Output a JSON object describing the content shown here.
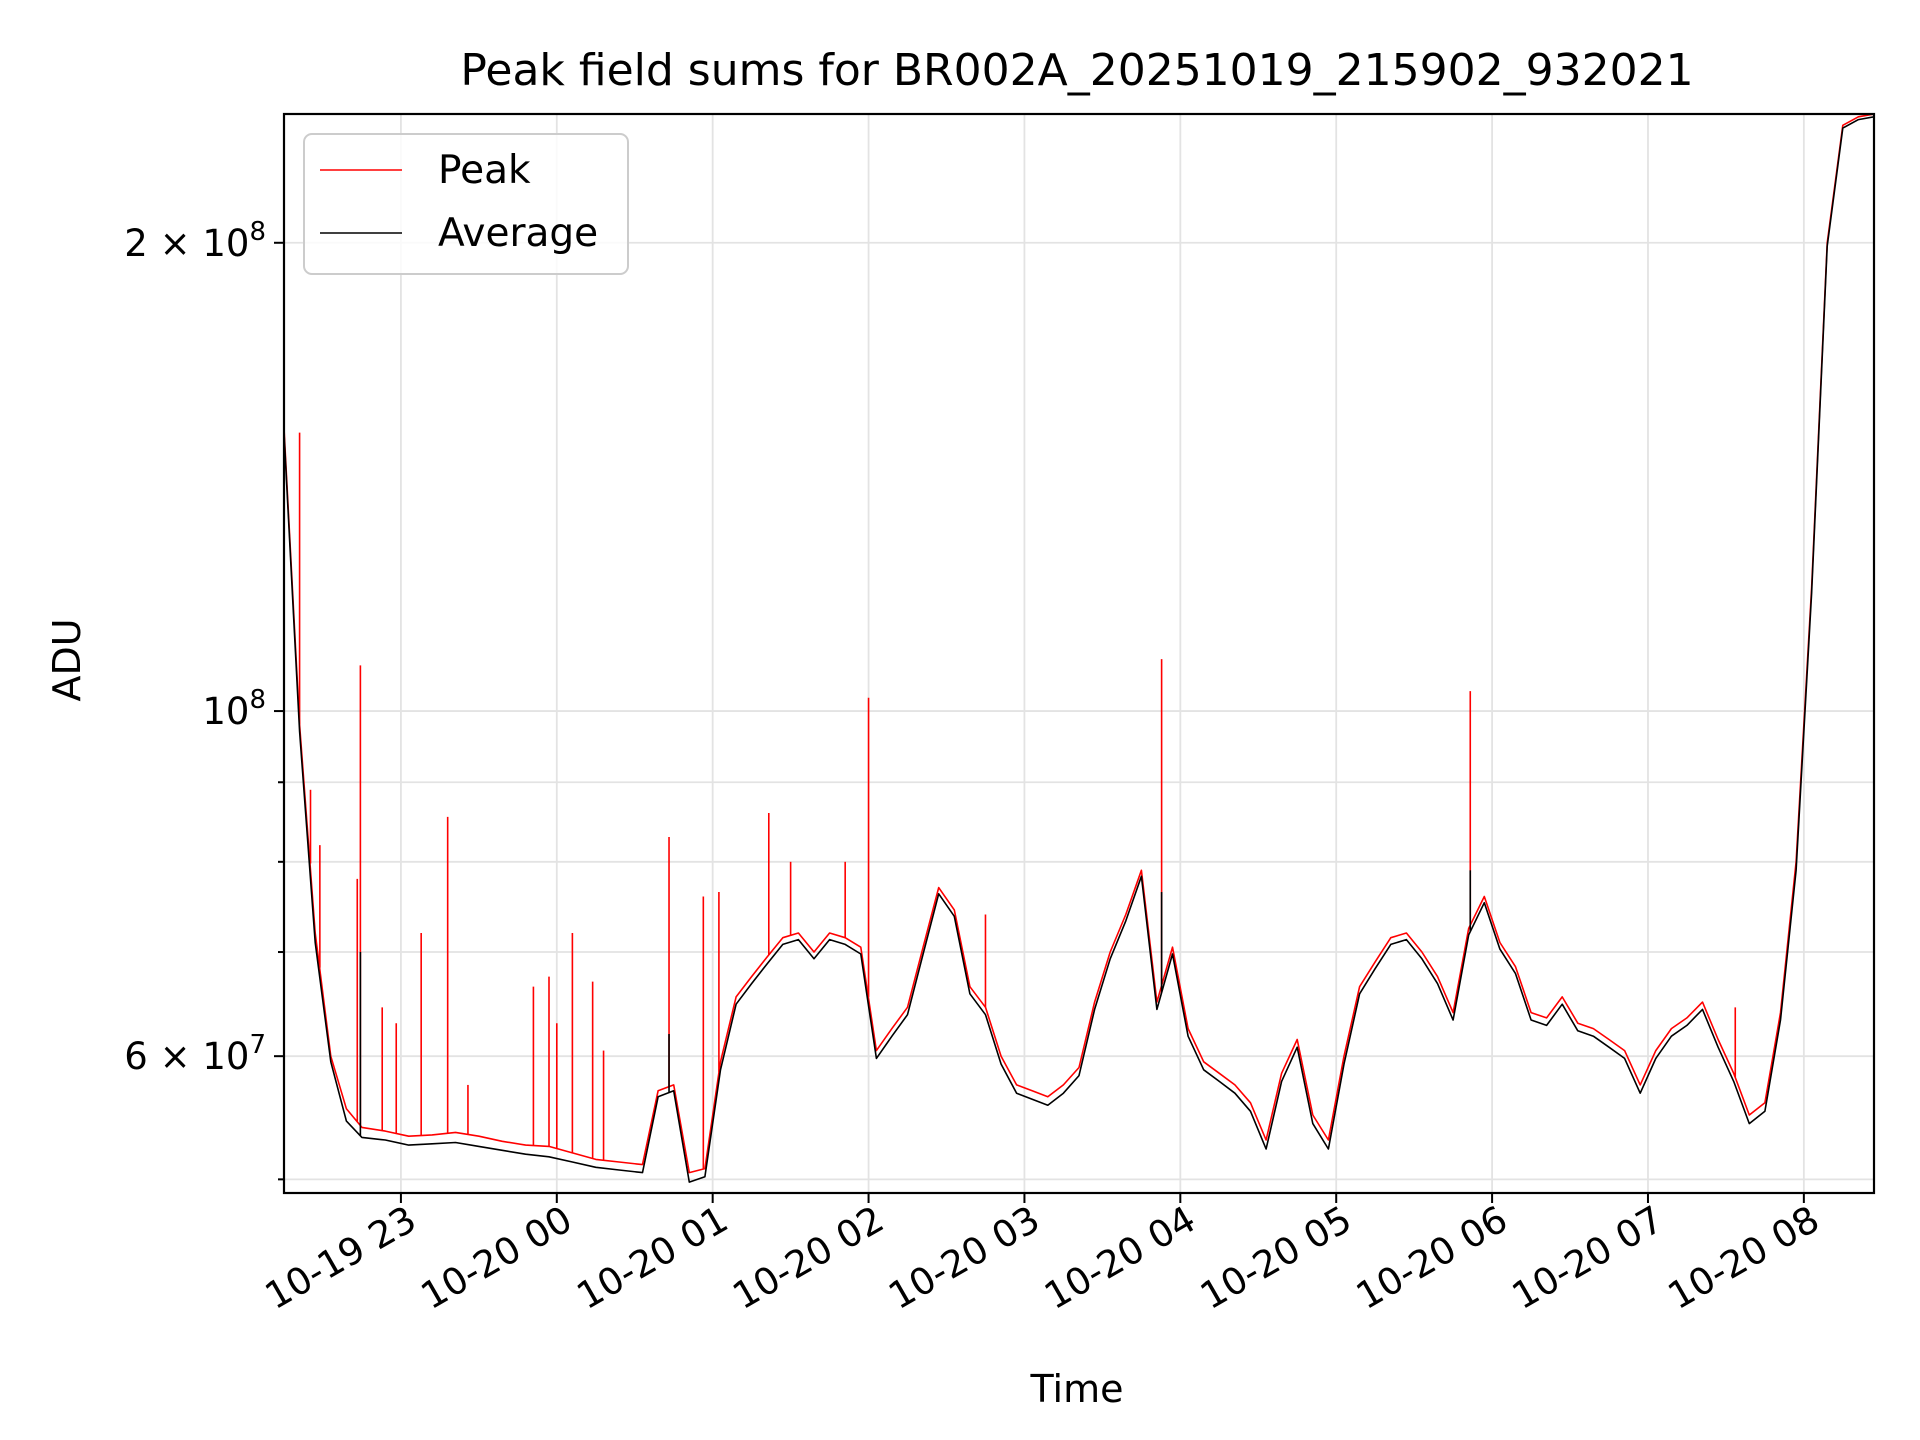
{
  "chart_data": {
    "type": "line",
    "title": "Peak field sums for BR002A_20251019_215902_932021",
    "xlabel": "Time",
    "ylabel": "ADU",
    "yscale": "log",
    "xlim": [
      22.25,
      32.45
    ],
    "ylim": [
      49000000,
      242000000
    ],
    "grid": true,
    "legend_position": "top-left",
    "x_ticks": [
      {
        "value": 23,
        "label": "10-19 23"
      },
      {
        "value": 24,
        "label": "10-20 00"
      },
      {
        "value": 25,
        "label": "10-20 01"
      },
      {
        "value": 26,
        "label": "10-20 02"
      },
      {
        "value": 27,
        "label": "10-20 03"
      },
      {
        "value": 28,
        "label": "10-20 04"
      },
      {
        "value": 29,
        "label": "10-20 05"
      },
      {
        "value": 30,
        "label": "10-20 06"
      },
      {
        "value": 31,
        "label": "10-20 07"
      },
      {
        "value": 32,
        "label": "10-20 08"
      }
    ],
    "y_ticks": [
      {
        "value": 60000000,
        "mantissa": "6",
        "exponent": "7"
      },
      {
        "value": 100000000,
        "mantissa": "",
        "exponent": "8"
      },
      {
        "value": 200000000,
        "mantissa": "2",
        "exponent": "8"
      }
    ],
    "y_minor_ticks": [
      50000000,
      70000000,
      80000000,
      90000000
    ],
    "series": [
      {
        "name": "Peak",
        "color": "#ff0000",
        "x": [
          22.25,
          22.35,
          22.45,
          22.55,
          22.65,
          22.75,
          22.9,
          23.05,
          23.2,
          23.35,
          23.5,
          23.65,
          23.8,
          23.95,
          24.1,
          24.25,
          24.4,
          24.55,
          24.65,
          24.75,
          24.85,
          24.95,
          25.05,
          25.15,
          25.25,
          25.35,
          25.45,
          25.55,
          25.65,
          25.75,
          25.85,
          25.95,
          26.05,
          26.15,
          26.25,
          26.35,
          26.45,
          26.55,
          26.65,
          26.75,
          26.85,
          26.95,
          27.05,
          27.15,
          27.25,
          27.35,
          27.45,
          27.55,
          27.65,
          27.75,
          27.85,
          27.95,
          28.05,
          28.15,
          28.25,
          28.35,
          28.45,
          28.55,
          28.65,
          28.75,
          28.85,
          28.95,
          29.05,
          29.15,
          29.25,
          29.35,
          29.45,
          29.55,
          29.65,
          29.75,
          29.85,
          29.95,
          30.05,
          30.15,
          30.25,
          30.35,
          30.45,
          30.55,
          30.65,
          30.75,
          30.85,
          30.95,
          31.05,
          31.15,
          31.25,
          31.35,
          31.45,
          31.55,
          31.65,
          31.75,
          31.85,
          31.95,
          32.05,
          32.15,
          32.25,
          32.35,
          32.45
        ],
        "values": [
          152000000,
          98000000,
          72000000,
          60000000,
          55500000,
          54000000,
          53700000,
          53300000,
          53400000,
          53600000,
          53300000,
          52900000,
          52600000,
          52500000,
          52000000,
          51500000,
          51300000,
          51100000,
          57000000,
          57500000,
          50500000,
          50800000,
          59500000,
          65500000,
          67500000,
          69500000,
          71500000,
          72000000,
          70000000,
          72000000,
          71500000,
          70500000,
          60500000,
          62500000,
          64500000,
          70500000,
          77000000,
          74500000,
          66500000,
          64500000,
          60000000,
          57500000,
          57000000,
          56500000,
          57500000,
          59000000,
          65000000,
          70000000,
          74000000,
          79000000,
          65000000,
          70500000,
          62500000,
          59500000,
          58500000,
          57500000,
          56000000,
          53000000,
          58500000,
          61500000,
          55000000,
          53000000,
          60000000,
          66500000,
          69000000,
          71500000,
          72000000,
          70000000,
          67500000,
          64000000,
          72500000,
          76000000,
          71000000,
          68500000,
          64000000,
          63500000,
          65500000,
          63000000,
          62500000,
          61500000,
          60500000,
          57500000,
          60500000,
          62500000,
          63500000,
          65000000,
          61500000,
          58500000,
          55000000,
          56000000,
          64000000,
          80000000,
          120000000,
          200000000,
          238000000,
          241000000,
          242000000
        ],
        "spikes": [
          {
            "x": 22.35,
            "value": 151000000
          },
          {
            "x": 22.42,
            "value": 89000000
          },
          {
            "x": 22.48,
            "value": 82000000
          },
          {
            "x": 22.72,
            "value": 78000000
          },
          {
            "x": 22.74,
            "value": 107000000
          },
          {
            "x": 22.88,
            "value": 64500000
          },
          {
            "x": 22.97,
            "value": 63000000
          },
          {
            "x": 23.13,
            "value": 72000000
          },
          {
            "x": 23.3,
            "value": 85500000
          },
          {
            "x": 23.43,
            "value": 57500000
          },
          {
            "x": 23.85,
            "value": 66500000
          },
          {
            "x": 23.95,
            "value": 67500000
          },
          {
            "x": 24.0,
            "value": 63000000
          },
          {
            "x": 24.1,
            "value": 72000000
          },
          {
            "x": 24.23,
            "value": 67000000
          },
          {
            "x": 24.3,
            "value": 60500000
          },
          {
            "x": 24.72,
            "value": 83000000
          },
          {
            "x": 24.94,
            "value": 76000000
          },
          {
            "x": 25.04,
            "value": 76500000
          },
          {
            "x": 25.36,
            "value": 86000000
          },
          {
            "x": 25.5,
            "value": 80000000
          },
          {
            "x": 25.85,
            "value": 80000000
          },
          {
            "x": 26.0,
            "value": 102000000
          },
          {
            "x": 26.75,
            "value": 74000000
          },
          {
            "x": 27.88,
            "value": 108000000
          },
          {
            "x": 29.86,
            "value": 103000000
          },
          {
            "x": 31.56,
            "value": 64500000
          }
        ]
      },
      {
        "name": "Average",
        "color": "#000000",
        "x": [
          22.25,
          22.35,
          22.45,
          22.55,
          22.65,
          22.75,
          22.9,
          23.05,
          23.2,
          23.35,
          23.5,
          23.65,
          23.8,
          23.95,
          24.1,
          24.25,
          24.4,
          24.55,
          24.65,
          24.75,
          24.85,
          24.95,
          25.05,
          25.15,
          25.25,
          25.35,
          25.45,
          25.55,
          25.65,
          25.75,
          25.85,
          25.95,
          26.05,
          26.15,
          26.25,
          26.35,
          26.45,
          26.55,
          26.65,
          26.75,
          26.85,
          26.95,
          27.05,
          27.15,
          27.25,
          27.35,
          27.45,
          27.55,
          27.65,
          27.75,
          27.85,
          27.95,
          28.05,
          28.15,
          28.25,
          28.35,
          28.45,
          28.55,
          28.65,
          28.75,
          28.85,
          28.95,
          29.05,
          29.15,
          29.25,
          29.35,
          29.45,
          29.55,
          29.65,
          29.75,
          29.85,
          29.95,
          30.05,
          30.15,
          30.25,
          30.35,
          30.45,
          30.55,
          30.65,
          30.75,
          30.85,
          30.95,
          31.05,
          31.15,
          31.25,
          31.35,
          31.45,
          31.55,
          31.65,
          31.75,
          31.85,
          31.95,
          32.05,
          32.15,
          32.25,
          32.35,
          32.45
        ],
        "values": [
          151000000,
          97000000,
          71000000,
          59500000,
          54500000,
          53200000,
          53000000,
          52600000,
          52700000,
          52800000,
          52500000,
          52200000,
          51900000,
          51700000,
          51300000,
          50900000,
          50700000,
          50500000,
          56500000,
          57000000,
          49800000,
          50200000,
          58800000,
          64800000,
          66800000,
          68800000,
          70800000,
          71300000,
          69300000,
          71300000,
          70800000,
          69800000,
          59800000,
          61800000,
          63800000,
          69800000,
          76300000,
          73800000,
          65800000,
          63800000,
          59300000,
          56800000,
          56300000,
          55800000,
          56800000,
          58300000,
          64300000,
          69300000,
          73300000,
          78300000,
          64300000,
          69800000,
          61800000,
          58800000,
          57800000,
          56800000,
          55300000,
          52300000,
          57800000,
          60800000,
          54300000,
          52300000,
          59300000,
          65800000,
          68300000,
          70800000,
          71300000,
          69300000,
          66800000,
          63300000,
          71800000,
          75300000,
          70300000,
          67800000,
          63300000,
          62800000,
          64800000,
          62300000,
          61800000,
          60800000,
          59800000,
          56800000,
          59800000,
          61800000,
          62800000,
          64300000,
          60800000,
          57800000,
          54300000,
          55300000,
          63300000,
          79000000,
          119000000,
          199000000,
          237000000,
          240000000,
          241000000
        ],
        "spikes": [
          {
            "x": 22.74,
            "value": 70000000
          },
          {
            "x": 24.72,
            "value": 62000000
          },
          {
            "x": 27.88,
            "value": 76500000
          },
          {
            "x": 29.86,
            "value": 79000000
          }
        ]
      }
    ]
  }
}
